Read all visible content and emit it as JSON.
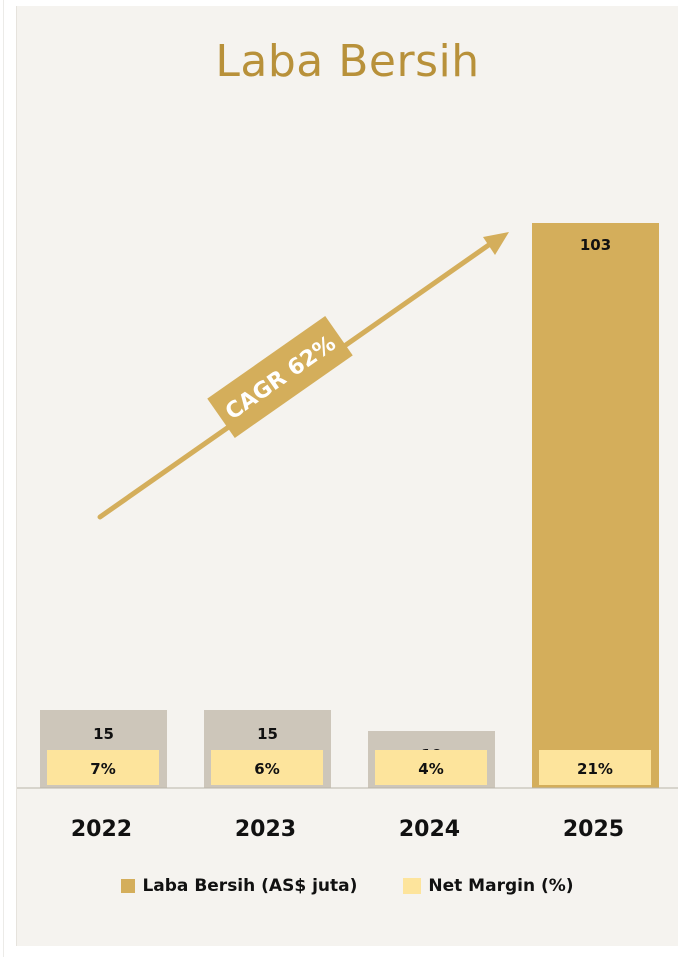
{
  "chart_data": {
    "type": "bar",
    "title": "Laba Bersih",
    "categories": [
      "2022",
      "2023",
      "2024",
      "2025"
    ],
    "series": [
      {
        "name": "Laba Bersih (AS$ juta)",
        "values": [
          15,
          15,
          10,
          103
        ],
        "labels": [
          "15",
          "15",
          "10",
          "103"
        ]
      },
      {
        "name": "Net Margin (%)",
        "values": [
          7,
          6,
          4,
          21
        ],
        "labels": [
          "7%",
          "6%",
          "4%",
          "21%"
        ]
      }
    ],
    "annotation": "CAGR 62%",
    "grid": false,
    "legend_position": "bottom"
  },
  "colors": {
    "highlight_bar": "#d4ae5b",
    "past_bar": "#cdc6ba",
    "margin_box": "#fde49c",
    "arrow": "#d4ae5b",
    "title": "#b8913a",
    "background": "#f5f3ef"
  }
}
